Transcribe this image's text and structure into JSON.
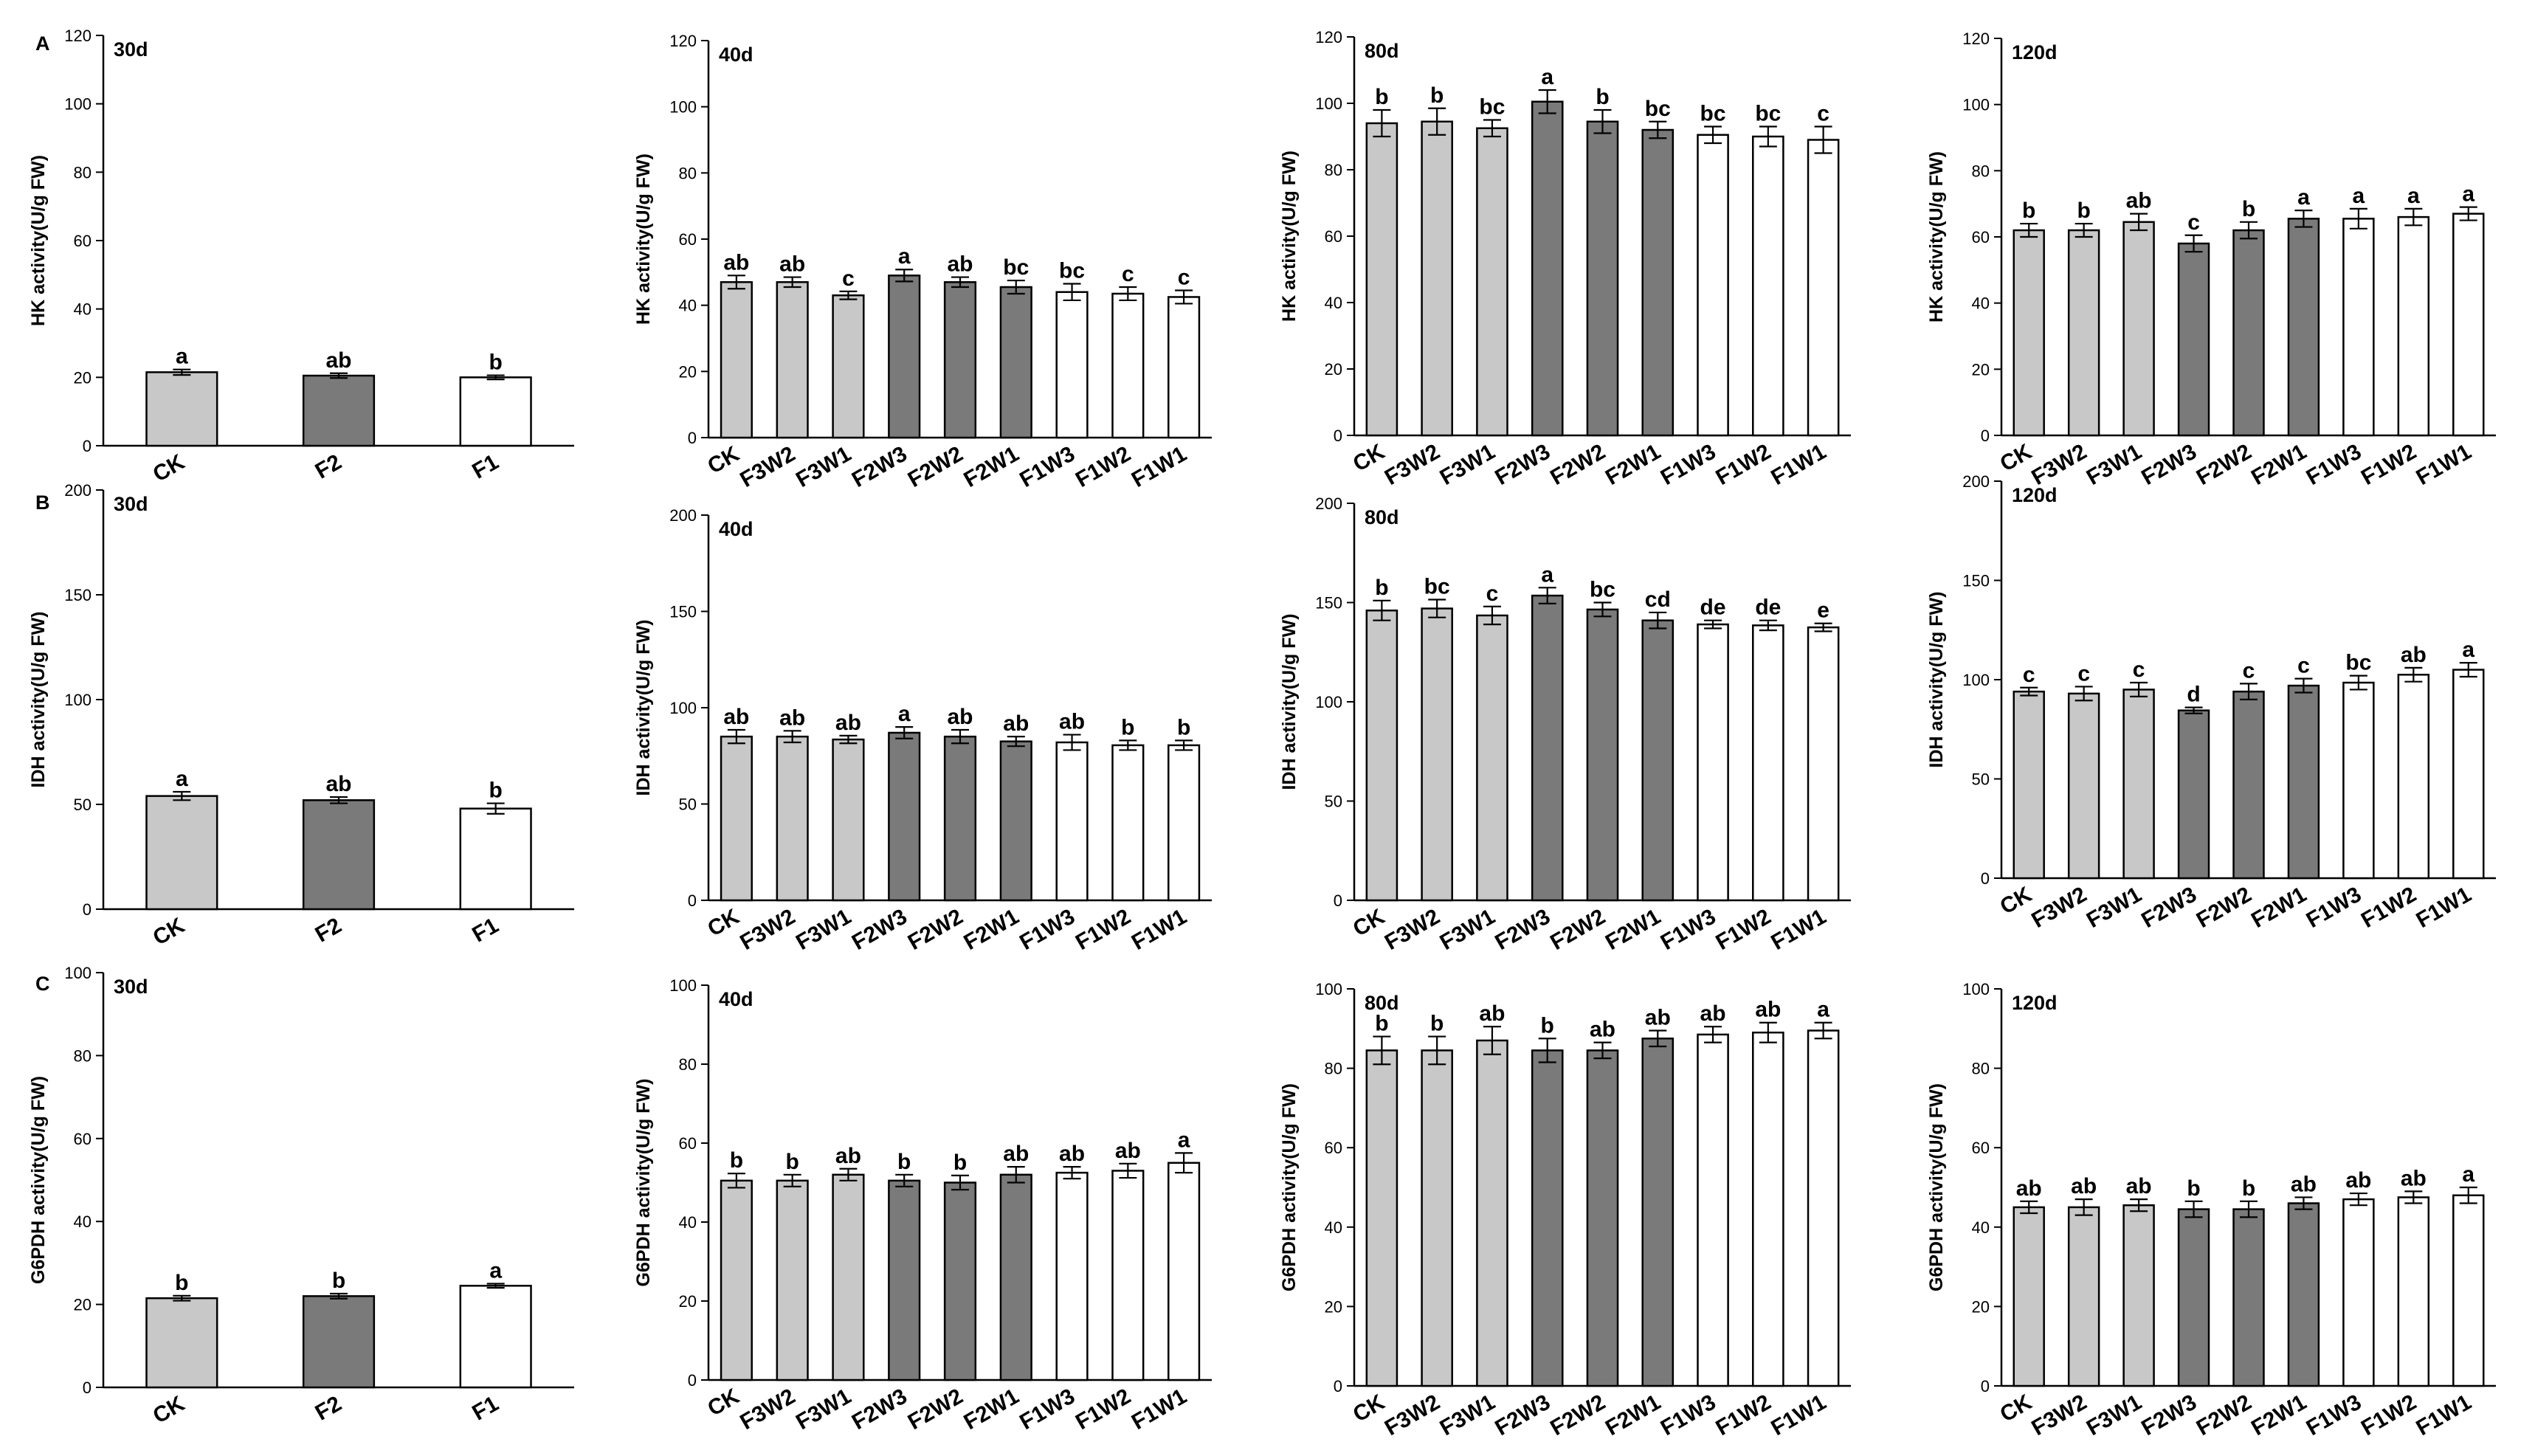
{
  "colors": {
    "light": "#c8c8c8",
    "dark": "#7a7a7a",
    "white": "#ffffff",
    "stroke": "#000000"
  },
  "row_labels": [
    "A",
    "B",
    "C"
  ],
  "chart_data": [
    {
      "type": "bar",
      "row": 0,
      "col": 0,
      "title": "30d",
      "ylabel": "HK activity(U/g FW)",
      "ylim": [
        0,
        120
      ],
      "yticks": [
        0,
        20,
        40,
        60,
        80,
        100,
        120
      ],
      "categories": [
        "CK",
        "F2",
        "F1"
      ],
      "values": [
        21.5,
        20.5,
        20
      ],
      "errors": [
        0.8,
        0.7,
        0.6
      ],
      "letters": [
        "a",
        "ab",
        "b"
      ],
      "fills": [
        "light",
        "dark",
        "white"
      ]
    },
    {
      "type": "bar",
      "row": 0,
      "col": 1,
      "title": "40d",
      "ylabel": "HK activity(U/g FW)",
      "ylim": [
        0,
        120
      ],
      "yticks": [
        0,
        20,
        40,
        60,
        80,
        100,
        120
      ],
      "categories": [
        "CK",
        "F3W2",
        "F3W1",
        "F2W3",
        "F2W2",
        "F2W1",
        "F1W3",
        "F1W2",
        "F1W1"
      ],
      "values": [
        47,
        47,
        43,
        49,
        47,
        45.5,
        44,
        43.5,
        42.5
      ],
      "errors": [
        2,
        1.5,
        1.2,
        1.8,
        1.5,
        2,
        2.5,
        2,
        2
      ],
      "letters": [
        "ab",
        "ab",
        "c",
        "a",
        "ab",
        "bc",
        "bc",
        "c",
        "c"
      ],
      "fills": [
        "light",
        "light",
        "light",
        "dark",
        "dark",
        "dark",
        "white",
        "white",
        "white"
      ]
    },
    {
      "type": "bar",
      "row": 0,
      "col": 2,
      "title": "80d",
      "ylabel": "HK activity(U/g FW)",
      "ylim": [
        0,
        120
      ],
      "yticks": [
        0,
        20,
        40,
        60,
        80,
        100,
        120
      ],
      "categories": [
        "CK",
        "F3W2",
        "F3W1",
        "F2W3",
        "F2W2",
        "F2W1",
        "F1W3",
        "F1W2",
        "F1W1"
      ],
      "values": [
        94,
        94.5,
        92.5,
        100.5,
        94.5,
        92,
        90.5,
        90,
        89
      ],
      "errors": [
        4,
        4,
        2.5,
        3.5,
        3.5,
        2.5,
        2.5,
        3,
        4
      ],
      "letters": [
        "b",
        "b",
        "bc",
        "a",
        "b",
        "bc",
        "bc",
        "bc",
        "c"
      ],
      "fills": [
        "light",
        "light",
        "light",
        "dark",
        "dark",
        "dark",
        "white",
        "white",
        "white"
      ]
    },
    {
      "type": "bar",
      "row": 0,
      "col": 3,
      "title": "120d",
      "ylabel": "HK activity(U/g FW)",
      "ylim": [
        0,
        120
      ],
      "yticks": [
        0,
        20,
        40,
        60,
        80,
        100,
        120
      ],
      "categories": [
        "CK",
        "F3W2",
        "F3W1",
        "F2W3",
        "F2W2",
        "F2W1",
        "F1W3",
        "F1W2",
        "F1W1"
      ],
      "values": [
        62,
        62,
        64.5,
        58,
        62,
        65.5,
        65.5,
        66,
        67
      ],
      "errors": [
        2,
        2,
        2.5,
        2.5,
        2.5,
        2.5,
        3,
        2.5,
        2
      ],
      "letters": [
        "b",
        "b",
        "ab",
        "c",
        "b",
        "a",
        "a",
        "a",
        "a"
      ],
      "fills": [
        "light",
        "light",
        "light",
        "dark",
        "dark",
        "dark",
        "white",
        "white",
        "white"
      ]
    },
    {
      "type": "bar",
      "row": 1,
      "col": 0,
      "title": "30d",
      "ylabel": "IDH activity(U/g FW)",
      "ylim": [
        0,
        200
      ],
      "yticks": [
        0,
        50,
        100,
        150,
        200
      ],
      "categories": [
        "CK",
        "F2",
        "F1"
      ],
      "values": [
        54,
        52,
        48
      ],
      "errors": [
        2,
        1.5,
        2.5
      ],
      "letters": [
        "a",
        "ab",
        "b"
      ],
      "fills": [
        "light",
        "dark",
        "white"
      ]
    },
    {
      "type": "bar",
      "row": 1,
      "col": 1,
      "title": "40d",
      "ylabel": "IDH activity(U/g FW)",
      "ylim": [
        0,
        200
      ],
      "yticks": [
        0,
        50,
        100,
        150,
        200
      ],
      "categories": [
        "CK",
        "F3W2",
        "F3W1",
        "F2W3",
        "F2W2",
        "F2W1",
        "F1W3",
        "F1W2",
        "F1W1"
      ],
      "values": [
        85,
        85,
        83.5,
        87,
        85,
        82.5,
        82,
        80.5,
        80.5
      ],
      "errors": [
        3.5,
        3,
        2,
        3,
        3.5,
        2.5,
        4,
        2.5,
        2.5
      ],
      "letters": [
        "ab",
        "ab",
        "ab",
        "a",
        "ab",
        "ab",
        "ab",
        "b",
        "b"
      ],
      "fills": [
        "light",
        "light",
        "light",
        "dark",
        "dark",
        "dark",
        "white",
        "white",
        "white"
      ]
    },
    {
      "type": "bar",
      "row": 1,
      "col": 2,
      "title": "80d",
      "ylabel": "IDH activity(U/g FW)",
      "ylim": [
        0,
        200
      ],
      "yticks": [
        0,
        50,
        100,
        150,
        200
      ],
      "categories": [
        "CK",
        "F3W2",
        "F3W1",
        "F2W3",
        "F2W2",
        "F2W1",
        "F1W3",
        "F1W2",
        "F1W1"
      ],
      "values": [
        146,
        147,
        143.5,
        153.5,
        146.5,
        141,
        139,
        138.5,
        137.5
      ],
      "errors": [
        5,
        4.5,
        4.5,
        4,
        3.5,
        4,
        2,
        2.5,
        2
      ],
      "letters": [
        "b",
        "bc",
        "c",
        "a",
        "bc",
        "cd",
        "de",
        "de",
        "e"
      ],
      "fills": [
        "light",
        "light",
        "light",
        "dark",
        "dark",
        "dark",
        "white",
        "white",
        "white"
      ]
    },
    {
      "type": "bar",
      "row": 1,
      "col": 3,
      "title": "120d",
      "ylabel": "IDH activity(U/g FW)",
      "ylim": [
        0,
        200
      ],
      "yticks": [
        0,
        50,
        100,
        150,
        200
      ],
      "categories": [
        "CK",
        "F3W2",
        "F3W1",
        "F2W3",
        "F2W2",
        "F2W1",
        "F1W3",
        "F1W2",
        "F1W1"
      ],
      "values": [
        94,
        93,
        95,
        84.5,
        94,
        97,
        98.5,
        102.5,
        105
      ],
      "errors": [
        2,
        3.5,
        3.5,
        1.5,
        4,
        3.5,
        3.5,
        3.5,
        3.5
      ],
      "letters": [
        "c",
        "c",
        "c",
        "d",
        "c",
        "c",
        "bc",
        "ab",
        "a"
      ],
      "fills": [
        "light",
        "light",
        "light",
        "dark",
        "dark",
        "dark",
        "white",
        "white",
        "white"
      ]
    },
    {
      "type": "bar",
      "row": 2,
      "col": 0,
      "title": "30d",
      "ylabel": "G6PDH activity(U/g FW)",
      "ylim": [
        0,
        100
      ],
      "yticks": [
        0,
        20,
        40,
        60,
        80,
        100
      ],
      "categories": [
        "CK",
        "F2",
        "F1"
      ],
      "values": [
        21.5,
        22,
        24.5
      ],
      "errors": [
        0.6,
        0.6,
        0.5
      ],
      "letters": [
        "b",
        "b",
        "a"
      ],
      "fills": [
        "light",
        "dark",
        "white"
      ]
    },
    {
      "type": "bar",
      "row": 2,
      "col": 1,
      "title": "40d",
      "ylabel": "G6PDH activity(U/g FW)",
      "ylim": [
        0,
        100
      ],
      "yticks": [
        0,
        20,
        40,
        60,
        80,
        100
      ],
      "categories": [
        "CK",
        "F3W2",
        "F3W1",
        "F2W3",
        "F2W2",
        "F2W1",
        "F1W3",
        "F1W2",
        "F1W1"
      ],
      "values": [
        50.5,
        50.5,
        52,
        50.5,
        50,
        52,
        52.5,
        53,
        55
      ],
      "errors": [
        1.8,
        1.5,
        1.5,
        1.5,
        1.8,
        2,
        1.5,
        1.8,
        2.5
      ],
      "letters": [
        "b",
        "b",
        "ab",
        "b",
        "b",
        "ab",
        "ab",
        "ab",
        "a"
      ],
      "fills": [
        "light",
        "light",
        "light",
        "dark",
        "dark",
        "dark",
        "white",
        "white",
        "white"
      ]
    },
    {
      "type": "bar",
      "row": 2,
      "col": 2,
      "title": "80d",
      "ylabel": "G6PDH activity(U/g FW)",
      "ylim": [
        0,
        100
      ],
      "yticks": [
        0,
        20,
        40,
        60,
        80,
        100
      ],
      "categories": [
        "CK",
        "F3W2",
        "F3W1",
        "F2W3",
        "F2W2",
        "F2W1",
        "F1W3",
        "F1W2",
        "F1W1"
      ],
      "values": [
        84.5,
        84.5,
        87,
        84.5,
        84.5,
        87.5,
        88.5,
        89,
        89.5
      ],
      "errors": [
        3.5,
        3.5,
        3.5,
        3,
        2,
        2,
        2,
        2.5,
        2
      ],
      "letters": [
        "b",
        "b",
        "ab",
        "b",
        "ab",
        "ab",
        "ab",
        "ab",
        "a"
      ],
      "fills": [
        "light",
        "light",
        "light",
        "dark",
        "dark",
        "dark",
        "white",
        "white",
        "white"
      ]
    },
    {
      "type": "bar",
      "row": 2,
      "col": 3,
      "title": "120d",
      "ylabel": "G6PDH activity(U/g FW)",
      "ylim": [
        0,
        100
      ],
      "yticks": [
        0,
        20,
        40,
        60,
        80,
        100
      ],
      "categories": [
        "CK",
        "F3W2",
        "F3W1",
        "F2W3",
        "F2W2",
        "F2W1",
        "F1W3",
        "F1W2",
        "F1W1"
      ],
      "values": [
        45,
        45,
        45.5,
        44.5,
        44.5,
        46,
        47,
        47.5,
        48
      ],
      "errors": [
        1.5,
        2,
        1.5,
        2,
        2,
        1.5,
        1.5,
        1.5,
        2
      ],
      "letters": [
        "ab",
        "ab",
        "ab",
        "b",
        "b",
        "ab",
        "ab",
        "ab",
        "a"
      ],
      "fills": [
        "light",
        "light",
        "light",
        "dark",
        "dark",
        "dark",
        "white",
        "white",
        "white"
      ]
    }
  ]
}
